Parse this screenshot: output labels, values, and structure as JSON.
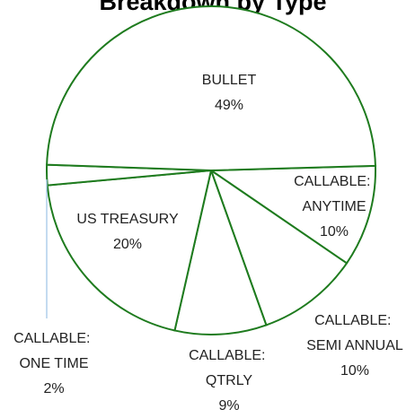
{
  "chart_data": {
    "type": "pie",
    "title": "Breakdown by Type",
    "categories": [
      "CALLABLE: ANYTIME",
      "CALLABLE: SEMI ANNUAL",
      "CALLABLE: QTRLY",
      "US TREASURY",
      "CALLABLE: ONE TIME",
      "BULLET"
    ],
    "values": [
      10,
      10,
      9,
      20,
      2,
      49
    ],
    "value_labels": [
      "10%",
      "10%",
      "9%",
      "20%",
      "2%",
      "49%"
    ],
    "color": "#ffffff",
    "edge_color": "#1e7b1e"
  }
}
